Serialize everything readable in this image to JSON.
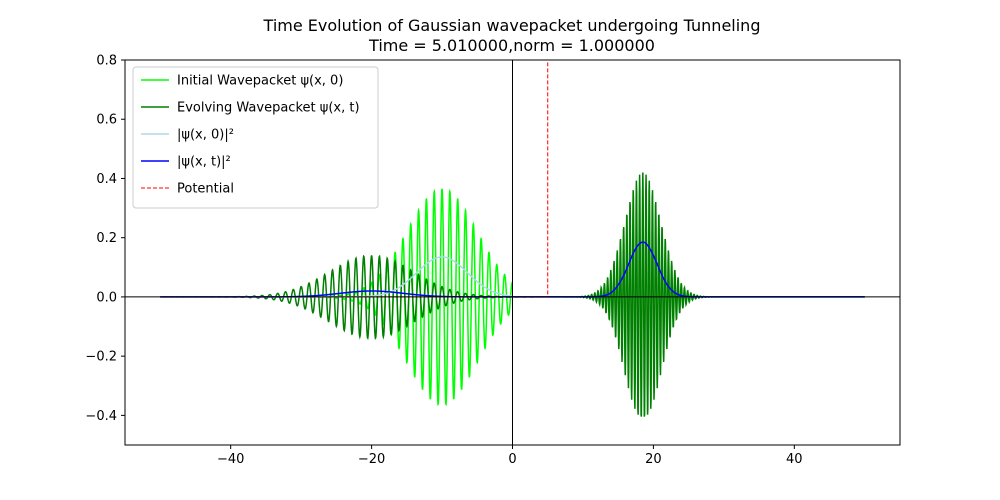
{
  "chart_data": {
    "type": "line",
    "title": "Time Evolution of Gaussian wavepacket undergoing Tunneling",
    "subtitle": "Time =  5.010000,norm =  1.000000",
    "xlabel": "",
    "ylabel": "",
    "xlim": [
      -55,
      55
    ],
    "ylim": [
      -0.5,
      0.8
    ],
    "x_ticks": [
      -40,
      -20,
      0,
      20,
      40
    ],
    "x_tick_labels": [
      "−40",
      "−20",
      "0",
      "20",
      "40"
    ],
    "y_ticks": [
      -0.4,
      -0.2,
      0.0,
      0.2,
      0.4,
      0.6,
      0.8
    ],
    "y_tick_labels": [
      "−0.4",
      "−0.2",
      "0.0",
      "0.2",
      "0.4",
      "0.6",
      "0.8"
    ],
    "grid": false,
    "legend_position": "top-left",
    "reference_lines": {
      "x0_vertical": true,
      "y0_horizontal": true,
      "color": "#000000"
    },
    "series": [
      {
        "name": "Initial Wavepacket ψ(x, 0)",
        "style": "solid",
        "color": "#00ff00",
        "function": "gaussian_wave",
        "x": [
          -50,
          0
        ],
        "amplitude": 0.365,
        "center": -10,
        "sigma": 5,
        "frequency": 0.9
      },
      {
        "name": "Evolving Wavepacket ψ(x, t)",
        "style": "solid",
        "color": "#008000",
        "function": "sum_of_gaussian_waves",
        "x": [
          -50,
          50
        ],
        "components": [
          {
            "amplitude": 0.14,
            "center": -20,
            "sigma": 6,
            "frequency": 0.9
          },
          {
            "amplitude": 0.42,
            "center": 18.5,
            "sigma": 2.6,
            "frequency": 2.2
          }
        ]
      },
      {
        "name": "|ψ(x, 0)|²",
        "style": "solid",
        "color": "#add8e6",
        "function": "gaussian",
        "x": [
          -50,
          0
        ],
        "amplitude": 0.135,
        "center": -10,
        "sigma": 3.6
      },
      {
        "name": "|ψ(x, t)|²",
        "style": "solid",
        "color": "#0000ff",
        "function": "sum_of_gaussians",
        "x": [
          -50,
          50
        ],
        "components": [
          {
            "amplitude": 0.02,
            "center": -20,
            "sigma": 4.5
          },
          {
            "amplitude": 0.185,
            "center": 18.5,
            "sigma": 2.0
          }
        ]
      },
      {
        "name": "Potential",
        "style": "dashed",
        "color": "#ff0000",
        "function": "step",
        "x": [
          -50,
          5
        ],
        "value": 0.0,
        "step_x": 5,
        "step_top": 0.8
      }
    ]
  }
}
